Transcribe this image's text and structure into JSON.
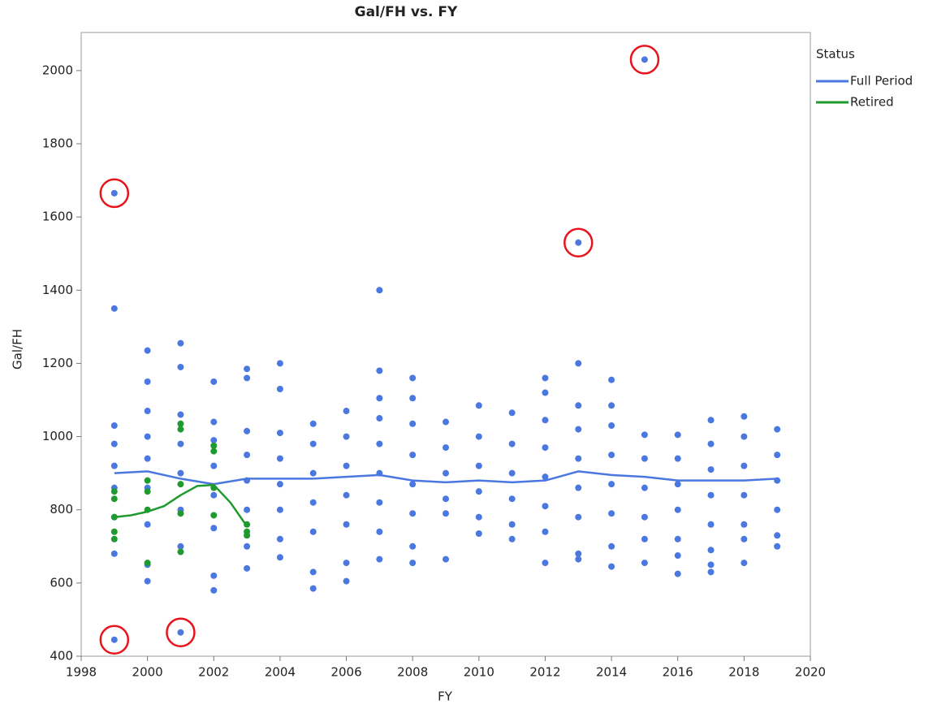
{
  "chart_data": {
    "type": "scatter",
    "title": "Gal/FH vs. FY",
    "x_label": "FY",
    "y_label": "Gal/FH",
    "legend_title": "Status",
    "legend_position": "right",
    "xlim": [
      1998,
      2020
    ],
    "ylim": [
      400,
      2104
    ],
    "xticks": [
      1998,
      2000,
      2002,
      2004,
      2006,
      2008,
      2010,
      2012,
      2014,
      2016,
      2018,
      2020
    ],
    "yticks": [
      400,
      600,
      800,
      1000,
      1200,
      1400,
      1600,
      1800,
      2000
    ],
    "series": [
      {
        "name": "Full Period",
        "color": "#4a78e0",
        "x": [
          1999,
          1999,
          1999,
          1999,
          1999,
          1999,
          1999,
          1999,
          1999,
          2000,
          2000,
          2000,
          2000,
          2000,
          2000,
          2000,
          2000,
          2000,
          2001,
          2001,
          2001,
          2001,
          2001,
          2001,
          2001,
          2001,
          2002,
          2002,
          2002,
          2002,
          2002,
          2002,
          2002,
          2002,
          2003,
          2003,
          2003,
          2003,
          2003,
          2003,
          2003,
          2003,
          2004,
          2004,
          2004,
          2004,
          2004,
          2004,
          2004,
          2004,
          2005,
          2005,
          2005,
          2005,
          2005,
          2005,
          2005,
          2006,
          2006,
          2006,
          2006,
          2006,
          2006,
          2006,
          2007,
          2007,
          2007,
          2007,
          2007,
          2007,
          2007,
          2007,
          2007,
          2008,
          2008,
          2008,
          2008,
          2008,
          2008,
          2008,
          2008,
          2009,
          2009,
          2009,
          2009,
          2009,
          2009,
          2010,
          2010,
          2010,
          2010,
          2010,
          2010,
          2011,
          2011,
          2011,
          2011,
          2011,
          2011,
          2012,
          2012,
          2012,
          2012,
          2012,
          2012,
          2012,
          2012,
          2013,
          2013,
          2013,
          2013,
          2013,
          2013,
          2013,
          2013,
          2013,
          2014,
          2014,
          2014,
          2014,
          2014,
          2014,
          2014,
          2014,
          2015,
          2015,
          2015,
          2015,
          2015,
          2015,
          2015,
          2016,
          2016,
          2016,
          2016,
          2016,
          2016,
          2016,
          2017,
          2017,
          2017,
          2017,
          2017,
          2017,
          2017,
          2017,
          2018,
          2018,
          2018,
          2018,
          2018,
          2018,
          2018,
          2019,
          2019,
          2019,
          2019,
          2019,
          2019
        ],
        "values": [
          1665,
          1350,
          1030,
          980,
          920,
          860,
          780,
          680,
          445,
          1235,
          1150,
          1070,
          1000,
          940,
          860,
          760,
          650,
          605,
          1255,
          1190,
          1060,
          980,
          900,
          800,
          700,
          465,
          1150,
          1040,
          990,
          920,
          840,
          750,
          620,
          580,
          1185,
          1160,
          1015,
          950,
          880,
          800,
          700,
          640,
          1200,
          1130,
          1010,
          940,
          870,
          800,
          720,
          670,
          1035,
          980,
          900,
          820,
          740,
          630,
          585,
          1070,
          1000,
          920,
          840,
          760,
          655,
          605,
          1400,
          1180,
          1105,
          1050,
          980,
          900,
          820,
          740,
          665,
          1160,
          1105,
          1035,
          950,
          870,
          790,
          700,
          655,
          1040,
          970,
          900,
          830,
          790,
          665,
          1085,
          1000,
          920,
          850,
          780,
          735,
          1065,
          980,
          900,
          830,
          760,
          720,
          1160,
          1120,
          1045,
          970,
          890,
          810,
          740,
          655,
          1530,
          1200,
          1085,
          1020,
          940,
          860,
          780,
          680,
          665,
          1155,
          1085,
          1030,
          950,
          870,
          790,
          700,
          645,
          2030,
          1005,
          940,
          860,
          780,
          720,
          655,
          1005,
          940,
          870,
          800,
          720,
          675,
          625,
          1045,
          980,
          910,
          840,
          760,
          690,
          650,
          630,
          1055,
          1000,
          920,
          840,
          760,
          720,
          655,
          1020,
          950,
          880,
          800,
          730,
          700
        ],
        "fit_x": [
          1999,
          2000,
          2001,
          2002,
          2003,
          2004,
          2005,
          2006,
          2007,
          2008,
          2009,
          2010,
          2011,
          2012,
          2013,
          2014,
          2015,
          2016,
          2017,
          2018,
          2019
        ],
        "fit_values": [
          900,
          905,
          885,
          870,
          885,
          885,
          885,
          890,
          895,
          880,
          875,
          880,
          875,
          880,
          905,
          895,
          890,
          880,
          880,
          880,
          885
        ]
      },
      {
        "name": "Retired",
        "color": "#1f9a2e",
        "x": [
          1999,
          1999,
          1999,
          1999,
          1999,
          2000,
          2000,
          2000,
          2000,
          2001,
          2001,
          2001,
          2001,
          2001,
          2002,
          2002,
          2002,
          2002,
          2003,
          2003,
          2003
        ],
        "values": [
          850,
          830,
          780,
          740,
          720,
          880,
          850,
          800,
          655,
          1035,
          1020,
          870,
          790,
          685,
          975,
          960,
          860,
          785,
          760,
          740,
          730
        ],
        "fit_x": [
          1999,
          1999.5,
          2000,
          2000.5,
          2001,
          2001.5,
          2002,
          2002.5,
          2003
        ],
        "fit_values": [
          780,
          785,
          795,
          810,
          840,
          865,
          868,
          820,
          755
        ]
      }
    ],
    "circled": {
      "color": "#e8141b",
      "x": [
        1999,
        1999,
        2001,
        2013,
        2015
      ],
      "y": [
        1665,
        445,
        465,
        1530,
        2030
      ]
    }
  }
}
